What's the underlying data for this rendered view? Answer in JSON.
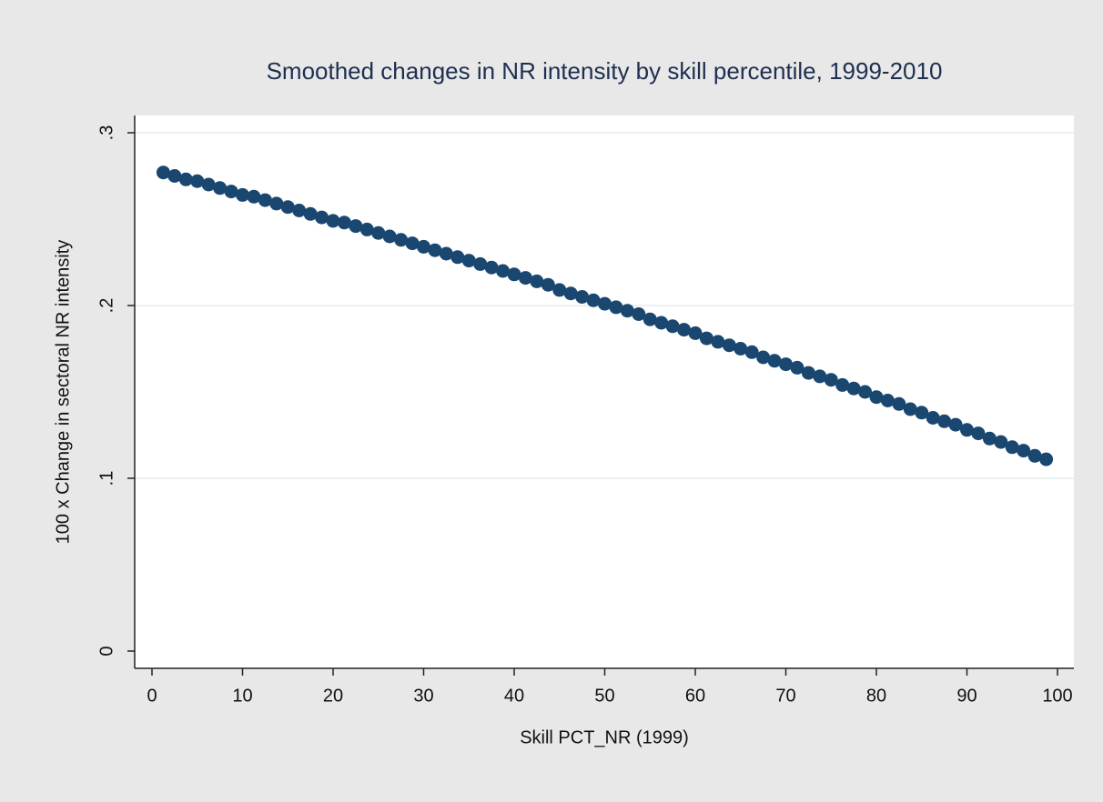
{
  "chart_data": {
    "type": "scatter",
    "title": "Smoothed changes in NR intensity by skill percentile, 1999-2010",
    "x_label": "Skill PCT_NR (1999)",
    "y_label": "100 x Change in sectoral NR intensity",
    "color": "#1a476f",
    "grid": true,
    "xlim": [
      0,
      100
    ],
    "xticks": [
      0,
      10,
      20,
      30,
      40,
      50,
      60,
      70,
      80,
      90,
      100
    ],
    "ylim": [
      0,
      0.3
    ],
    "yticks": [
      0,
      {
        "value": 0.1,
        "label": ".1"
      },
      {
        "value": 0.2,
        "label": ".2"
      },
      {
        "value": 0.3,
        "label": ".3"
      }
    ],
    "x": [
      1.25,
      2.5,
      3.75,
      5,
      6.25,
      7.5,
      8.75,
      10,
      11.25,
      12.5,
      13.75,
      15,
      16.25,
      17.5,
      18.75,
      20,
      21.25,
      22.5,
      23.75,
      25,
      26.25,
      27.5,
      28.75,
      30,
      31.25,
      32.5,
      33.75,
      35,
      36.25,
      37.5,
      38.75,
      40,
      41.25,
      42.5,
      43.75,
      45,
      46.25,
      47.5,
      48.75,
      50,
      51.25,
      52.5,
      53.75,
      55,
      56.25,
      57.5,
      58.75,
      60,
      61.25,
      62.5,
      63.75,
      65,
      66.25,
      67.5,
      68.75,
      70,
      71.25,
      72.5,
      73.75,
      75,
      76.25,
      77.5,
      78.75,
      80,
      81.25,
      82.5,
      83.75,
      85,
      86.25,
      87.5,
      88.75,
      90,
      91.25,
      92.5,
      93.75,
      95,
      96.25,
      97.5,
      98.75
    ],
    "values": [
      0.277,
      0.275,
      0.273,
      0.272,
      0.27,
      0.268,
      0.266,
      0.264,
      0.263,
      0.261,
      0.259,
      0.257,
      0.255,
      0.253,
      0.251,
      0.249,
      0.248,
      0.246,
      0.244,
      0.242,
      0.24,
      0.238,
      0.236,
      0.234,
      0.232,
      0.23,
      0.228,
      0.226,
      0.224,
      0.222,
      0.22,
      0.218,
      0.216,
      0.214,
      0.212,
      0.209,
      0.207,
      0.205,
      0.203,
      0.201,
      0.199,
      0.197,
      0.195,
      0.192,
      0.19,
      0.188,
      0.186,
      0.184,
      0.181,
      0.179,
      0.177,
      0.175,
      0.173,
      0.17,
      0.168,
      0.166,
      0.164,
      0.161,
      0.159,
      0.157,
      0.154,
      0.152,
      0.15,
      0.147,
      0.145,
      0.143,
      0.14,
      0.138,
      0.135,
      0.133,
      0.131,
      0.128,
      0.126,
      0.123,
      0.121,
      0.118,
      0.116,
      0.113,
      0.111
    ]
  }
}
